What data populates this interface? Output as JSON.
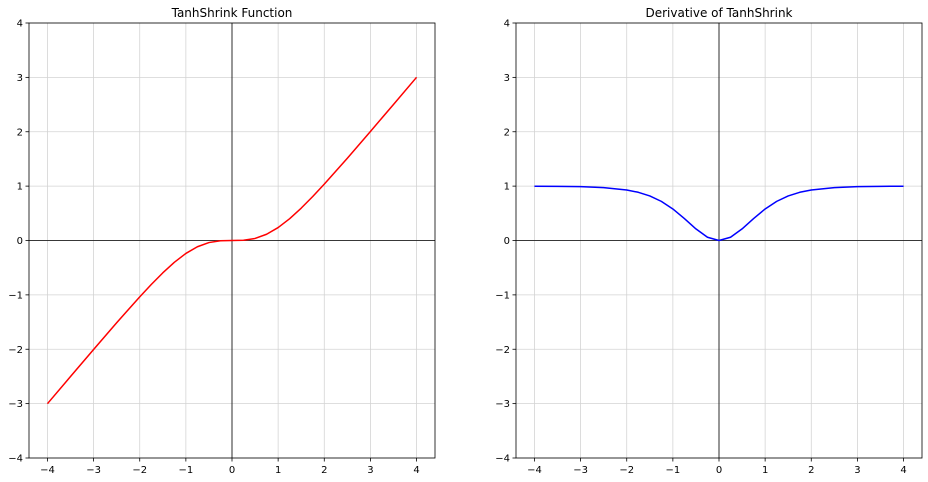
{
  "chart_data": [
    {
      "type": "line",
      "title": "TanhShrink Function",
      "xlabel": "",
      "ylabel": "",
      "xlim": [
        -4.4,
        4.4
      ],
      "ylim": [
        -4,
        4
      ],
      "xticks": [
        -4,
        -3,
        -2,
        -1,
        0,
        1,
        2,
        3,
        4
      ],
      "yticks": [
        -4,
        -3,
        -2,
        -1,
        0,
        1,
        2,
        3,
        4
      ],
      "xtick_labels": [
        "−4",
        "−3",
        "−2",
        "−1",
        "0",
        "1",
        "2",
        "3",
        "4"
      ],
      "ytick_labels": [
        "−4",
        "−3",
        "−2",
        "−1",
        "0",
        "1",
        "2",
        "3",
        "4"
      ],
      "grid": true,
      "axis_lines_at_zero": true,
      "series": [
        {
          "color": "#ff0000",
          "x": [
            -4,
            -3.5,
            -3,
            -2.5,
            -2,
            -1.75,
            -1.5,
            -1.25,
            -1,
            -0.75,
            -0.5,
            -0.25,
            0,
            0.25,
            0.5,
            0.75,
            1,
            1.25,
            1.5,
            1.75,
            2,
            2.5,
            3,
            3.5,
            4
          ],
          "y": [
            -3.0013,
            -2.5018,
            -2.0051,
            -1.5134,
            -1.036,
            -0.8088,
            -0.5949,
            -0.4014,
            -0.2384,
            -0.1147,
            -0.0379,
            -0.0051,
            0,
            0.0051,
            0.0379,
            0.1147,
            0.2384,
            0.4014,
            0.5949,
            0.8088,
            1.036,
            1.5134,
            2.0051,
            2.5018,
            3.0013
          ]
        }
      ]
    },
    {
      "type": "line",
      "title": "Derivative of TanhShrink",
      "xlabel": "",
      "ylabel": "",
      "xlim": [
        -4.4,
        4.4
      ],
      "ylim": [
        -4,
        4
      ],
      "xticks": [
        -4,
        -3,
        -2,
        -1,
        0,
        1,
        2,
        3,
        4
      ],
      "yticks": [
        -4,
        -3,
        -2,
        -1,
        0,
        1,
        2,
        3,
        4
      ],
      "xtick_labels": [
        "−4",
        "−3",
        "−2",
        "−1",
        "0",
        "1",
        "2",
        "3",
        "4"
      ],
      "ytick_labels": [
        "−4",
        "−3",
        "−2",
        "−1",
        "0",
        "1",
        "2",
        "3",
        "4"
      ],
      "grid": true,
      "axis_lines_at_zero": true,
      "series": [
        {
          "color": "#0000ff",
          "x": [
            -4,
            -3.5,
            -3,
            -2.5,
            -2,
            -1.75,
            -1.5,
            -1.25,
            -1,
            -0.75,
            -0.5,
            -0.25,
            0,
            0.25,
            0.5,
            0.75,
            1,
            1.25,
            1.5,
            1.75,
            2,
            2.5,
            3,
            3.5,
            4
          ],
          "y": [
            0.9987,
            0.9964,
            0.9901,
            0.9732,
            0.9293,
            0.8867,
            0.8193,
            0.7196,
            0.58,
            0.4028,
            0.2135,
            0.06,
            0,
            0.06,
            0.2135,
            0.4028,
            0.58,
            0.7196,
            0.8193,
            0.8867,
            0.9293,
            0.9732,
            0.9901,
            0.9964,
            0.9987
          ]
        }
      ]
    }
  ]
}
